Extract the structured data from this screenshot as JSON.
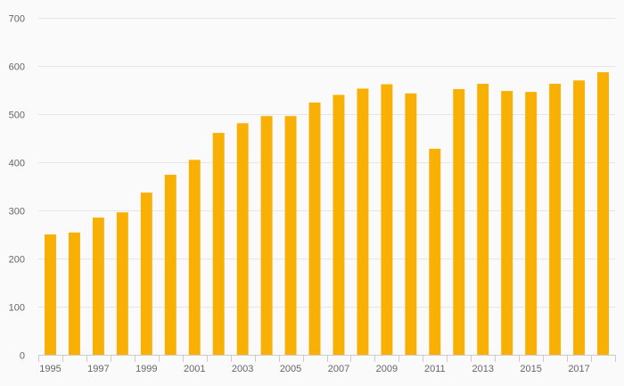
{
  "chart_data": {
    "type": "bar",
    "title": "",
    "xlabel": "",
    "ylabel": "",
    "categories": [
      "1995",
      "1996",
      "1997",
      "1998",
      "1999",
      "2000",
      "2001",
      "2002",
      "2003",
      "2004",
      "2005",
      "2006",
      "2007",
      "2008",
      "2009",
      "2010",
      "2011",
      "2012",
      "2013",
      "2014",
      "2015",
      "2016",
      "2017",
      "2018"
    ],
    "values": [
      250,
      254,
      285,
      296,
      337,
      374,
      405,
      461,
      481,
      496,
      496,
      524,
      540,
      553,
      562,
      543,
      428,
      552,
      563,
      548,
      546,
      563,
      570,
      587
    ],
    "x_tick_labels": [
      "1995",
      "1997",
      "1999",
      "2001",
      "2003",
      "2005",
      "2007",
      "2009",
      "2011",
      "2013",
      "2015",
      "2017"
    ],
    "y_ticks": [
      0,
      100,
      200,
      300,
      400,
      500,
      600,
      700
    ],
    "ylim": [
      0,
      700
    ],
    "grid": true,
    "legend": "none",
    "bar_color": "#f9b005"
  }
}
